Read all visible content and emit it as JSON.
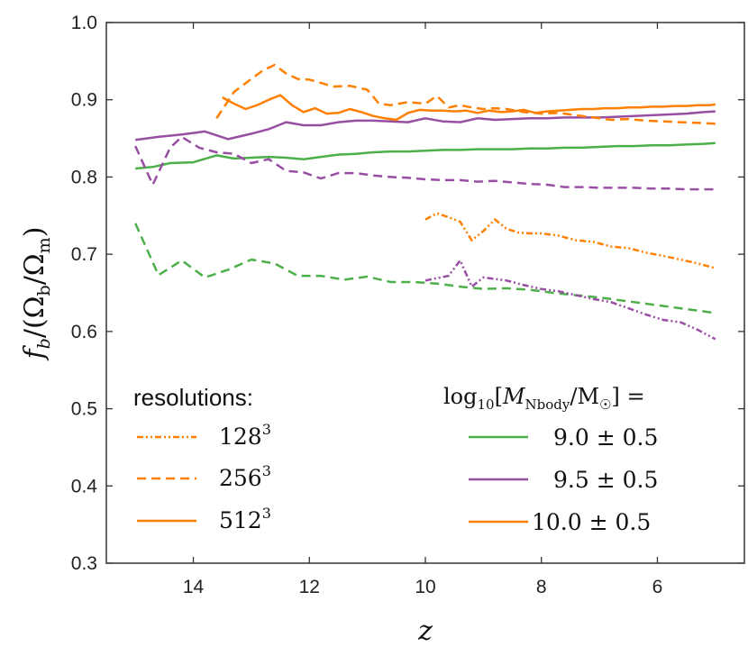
{
  "chart_data": {
    "type": "line",
    "xlabel": "z",
    "ylabel": "f_b/(Ω_b/Ω_m)",
    "ylabel_parts": {
      "f": "f",
      "b": "b",
      "slash1": "/(",
      "Omega": "Ω",
      "sub_b": "b",
      "slash2": "/",
      "sub_m": "m",
      "close": ")"
    },
    "xlim": [
      15.5,
      4.5
    ],
    "ylim": [
      0.3,
      1.0
    ],
    "xticks": [
      14,
      12,
      10,
      8,
      6
    ],
    "yticks": [
      0.3,
      0.4,
      0.5,
      0.6,
      0.7,
      0.8,
      0.9,
      1.0
    ],
    "ytick_labels": [
      "0.3",
      "0.4",
      "0.5",
      "0.6",
      "0.7",
      "0.8",
      "0.9",
      "1.0"
    ],
    "xtick_labels": [
      "14",
      "12",
      "10",
      "8",
      "6"
    ],
    "colors": {
      "green": "#4daf4a",
      "purple": "#984ea3",
      "orange": "#ff7f00"
    },
    "legend_resolutions": {
      "title": "resolutions:",
      "entries": [
        {
          "base": "128",
          "exp": "3",
          "style": "dashdot"
        },
        {
          "base": "256",
          "exp": "3",
          "style": "dashed"
        },
        {
          "base": "512",
          "exp": "3",
          "style": "solid"
        }
      ]
    },
    "legend_mass": {
      "title_parts": {
        "log": "log",
        "sub": "10",
        "open": "[",
        "M": "M",
        "msub": "Nbody",
        "slash": "/M",
        "sun": "☉",
        "close": "] ="
      },
      "entries": [
        {
          "label": "9.0 ± 0.5",
          "color": "green"
        },
        {
          "label": "9.5 ± 0.5",
          "color": "purple"
        },
        {
          "label": "10.0 ± 0.5",
          "color": "orange"
        }
      ]
    },
    "series": [
      {
        "name": "green-512",
        "color": "green",
        "style": "solid",
        "x": [
          15.0,
          14.7,
          14.4,
          14.0,
          13.6,
          13.3,
          13.0,
          12.7,
          12.4,
          12.1,
          11.8,
          11.5,
          11.2,
          10.9,
          10.6,
          10.3,
          10.0,
          9.7,
          9.4,
          9.1,
          8.8,
          8.5,
          8.2,
          7.9,
          7.6,
          7.3,
          7.0,
          6.7,
          6.4,
          6.1,
          5.8,
          5.5,
          5.2,
          5.0
        ],
        "y": [
          0.811,
          0.813,
          0.818,
          0.819,
          0.828,
          0.824,
          0.825,
          0.826,
          0.825,
          0.823,
          0.826,
          0.829,
          0.83,
          0.832,
          0.833,
          0.833,
          0.834,
          0.835,
          0.835,
          0.836,
          0.836,
          0.836,
          0.837,
          0.837,
          0.838,
          0.838,
          0.839,
          0.84,
          0.84,
          0.841,
          0.841,
          0.842,
          0.843,
          0.844
        ]
      },
      {
        "name": "green-256",
        "color": "green",
        "style": "dashed",
        "x": [
          15.0,
          14.6,
          14.2,
          13.8,
          13.4,
          13.0,
          12.6,
          12.2,
          11.8,
          11.4,
          11.0,
          10.6,
          10.2,
          9.8,
          9.4,
          9.0,
          8.6,
          8.2,
          7.8,
          7.4,
          7.0,
          6.6,
          6.2,
          5.8,
          5.4,
          5.0
        ],
        "y": [
          0.74,
          0.673,
          0.692,
          0.67,
          0.68,
          0.693,
          0.688,
          0.672,
          0.672,
          0.667,
          0.671,
          0.664,
          0.664,
          0.662,
          0.658,
          0.655,
          0.656,
          0.654,
          0.65,
          0.647,
          0.644,
          0.64,
          0.636,
          0.632,
          0.628,
          0.624
        ]
      },
      {
        "name": "purple-512",
        "color": "purple",
        "style": "solid",
        "x": [
          15.0,
          14.6,
          14.2,
          13.8,
          13.4,
          13.0,
          12.7,
          12.4,
          12.1,
          11.8,
          11.5,
          11.2,
          10.9,
          10.6,
          10.3,
          10.0,
          9.7,
          9.4,
          9.1,
          8.8,
          8.5,
          8.2,
          7.9,
          7.6,
          7.3,
          7.0,
          6.7,
          6.4,
          6.1,
          5.8,
          5.5,
          5.2,
          5.0
        ],
        "y": [
          0.848,
          0.852,
          0.855,
          0.859,
          0.849,
          0.856,
          0.862,
          0.871,
          0.867,
          0.867,
          0.871,
          0.873,
          0.873,
          0.872,
          0.871,
          0.876,
          0.872,
          0.871,
          0.876,
          0.874,
          0.875,
          0.876,
          0.876,
          0.877,
          0.877,
          0.877,
          0.878,
          0.879,
          0.88,
          0.881,
          0.882,
          0.884,
          0.885
        ]
      },
      {
        "name": "purple-256",
        "color": "purple",
        "style": "dashed",
        "x": [
          15.0,
          14.7,
          14.4,
          14.2,
          13.9,
          13.6,
          13.3,
          13.0,
          12.7,
          12.4,
          12.1,
          11.8,
          11.5,
          11.2,
          10.9,
          10.6,
          10.3,
          10.0,
          9.7,
          9.4,
          9.1,
          8.8,
          8.5,
          8.2,
          7.9,
          7.6,
          7.3,
          7.0,
          6.7,
          6.4,
          6.1,
          5.8,
          5.5,
          5.2,
          5.0
        ],
        "y": [
          0.84,
          0.79,
          0.838,
          0.852,
          0.838,
          0.832,
          0.83,
          0.818,
          0.823,
          0.808,
          0.806,
          0.798,
          0.805,
          0.805,
          0.802,
          0.8,
          0.799,
          0.797,
          0.796,
          0.796,
          0.794,
          0.795,
          0.793,
          0.791,
          0.79,
          0.787,
          0.787,
          0.786,
          0.786,
          0.786,
          0.785,
          0.785,
          0.784,
          0.784,
          0.784
        ]
      },
      {
        "name": "purple-128",
        "color": "purple",
        "style": "dashdot",
        "x": [
          10.0,
          9.6,
          9.4,
          9.2,
          9.0,
          8.8,
          8.6,
          8.3,
          8.0,
          7.7,
          7.4,
          7.1,
          6.8,
          6.5,
          6.2,
          5.9,
          5.6,
          5.3,
          5.0
        ],
        "y": [
          0.666,
          0.672,
          0.692,
          0.658,
          0.67,
          0.668,
          0.666,
          0.66,
          0.655,
          0.652,
          0.647,
          0.642,
          0.638,
          0.63,
          0.622,
          0.615,
          0.612,
          0.602,
          0.59
        ]
      },
      {
        "name": "orange-512",
        "color": "orange",
        "style": "solid",
        "x": [
          13.5,
          13.3,
          13.1,
          12.9,
          12.7,
          12.5,
          12.3,
          12.1,
          11.9,
          11.7,
          11.5,
          11.3,
          11.1,
          10.9,
          10.7,
          10.5,
          10.3,
          10.1,
          9.9,
          9.7,
          9.5,
          9.3,
          9.1,
          8.9,
          8.7,
          8.5,
          8.3,
          8.1,
          7.9,
          7.7,
          7.5,
          7.3,
          7.1,
          6.9,
          6.7,
          6.5,
          6.3,
          6.1,
          5.9,
          5.7,
          5.5,
          5.3,
          5.1,
          5.0
        ],
        "y": [
          0.903,
          0.895,
          0.888,
          0.893,
          0.9,
          0.906,
          0.893,
          0.884,
          0.889,
          0.882,
          0.883,
          0.888,
          0.884,
          0.879,
          0.876,
          0.874,
          0.883,
          0.887,
          0.886,
          0.886,
          0.885,
          0.886,
          0.883,
          0.886,
          0.884,
          0.885,
          0.887,
          0.883,
          0.885,
          0.886,
          0.887,
          0.888,
          0.888,
          0.889,
          0.889,
          0.89,
          0.89,
          0.891,
          0.891,
          0.892,
          0.892,
          0.893,
          0.893,
          0.894
        ]
      },
      {
        "name": "orange-256",
        "color": "orange",
        "style": "dashed",
        "x": [
          13.6,
          13.3,
          13.0,
          12.8,
          12.6,
          12.4,
          12.2,
          12.0,
          11.8,
          11.6,
          11.3,
          11.0,
          10.8,
          10.6,
          10.3,
          10.0,
          9.8,
          9.6,
          9.4,
          9.2,
          9.0,
          8.8,
          8.6,
          8.3,
          8.0,
          7.7,
          7.4,
          7.1,
          6.8,
          6.5,
          6.2,
          5.9,
          5.6,
          5.3,
          5.0
        ],
        "y": [
          0.876,
          0.91,
          0.927,
          0.938,
          0.945,
          0.934,
          0.927,
          0.926,
          0.922,
          0.917,
          0.918,
          0.913,
          0.895,
          0.893,
          0.897,
          0.895,
          0.905,
          0.89,
          0.893,
          0.89,
          0.888,
          0.889,
          0.888,
          0.884,
          0.882,
          0.883,
          0.88,
          0.877,
          0.874,
          0.875,
          0.873,
          0.872,
          0.871,
          0.87,
          0.869
        ]
      },
      {
        "name": "orange-128",
        "color": "orange",
        "style": "dashdot",
        "x": [
          10.0,
          9.8,
          9.6,
          9.4,
          9.2,
          9.0,
          8.8,
          8.6,
          8.4,
          8.2,
          8.0,
          7.7,
          7.4,
          7.1,
          6.8,
          6.5,
          6.2,
          5.9,
          5.6,
          5.3,
          5.0
        ],
        "y": [
          0.745,
          0.753,
          0.748,
          0.742,
          0.718,
          0.73,
          0.745,
          0.733,
          0.728,
          0.727,
          0.727,
          0.724,
          0.718,
          0.716,
          0.71,
          0.708,
          0.702,
          0.698,
          0.693,
          0.688,
          0.682
        ]
      }
    ]
  }
}
